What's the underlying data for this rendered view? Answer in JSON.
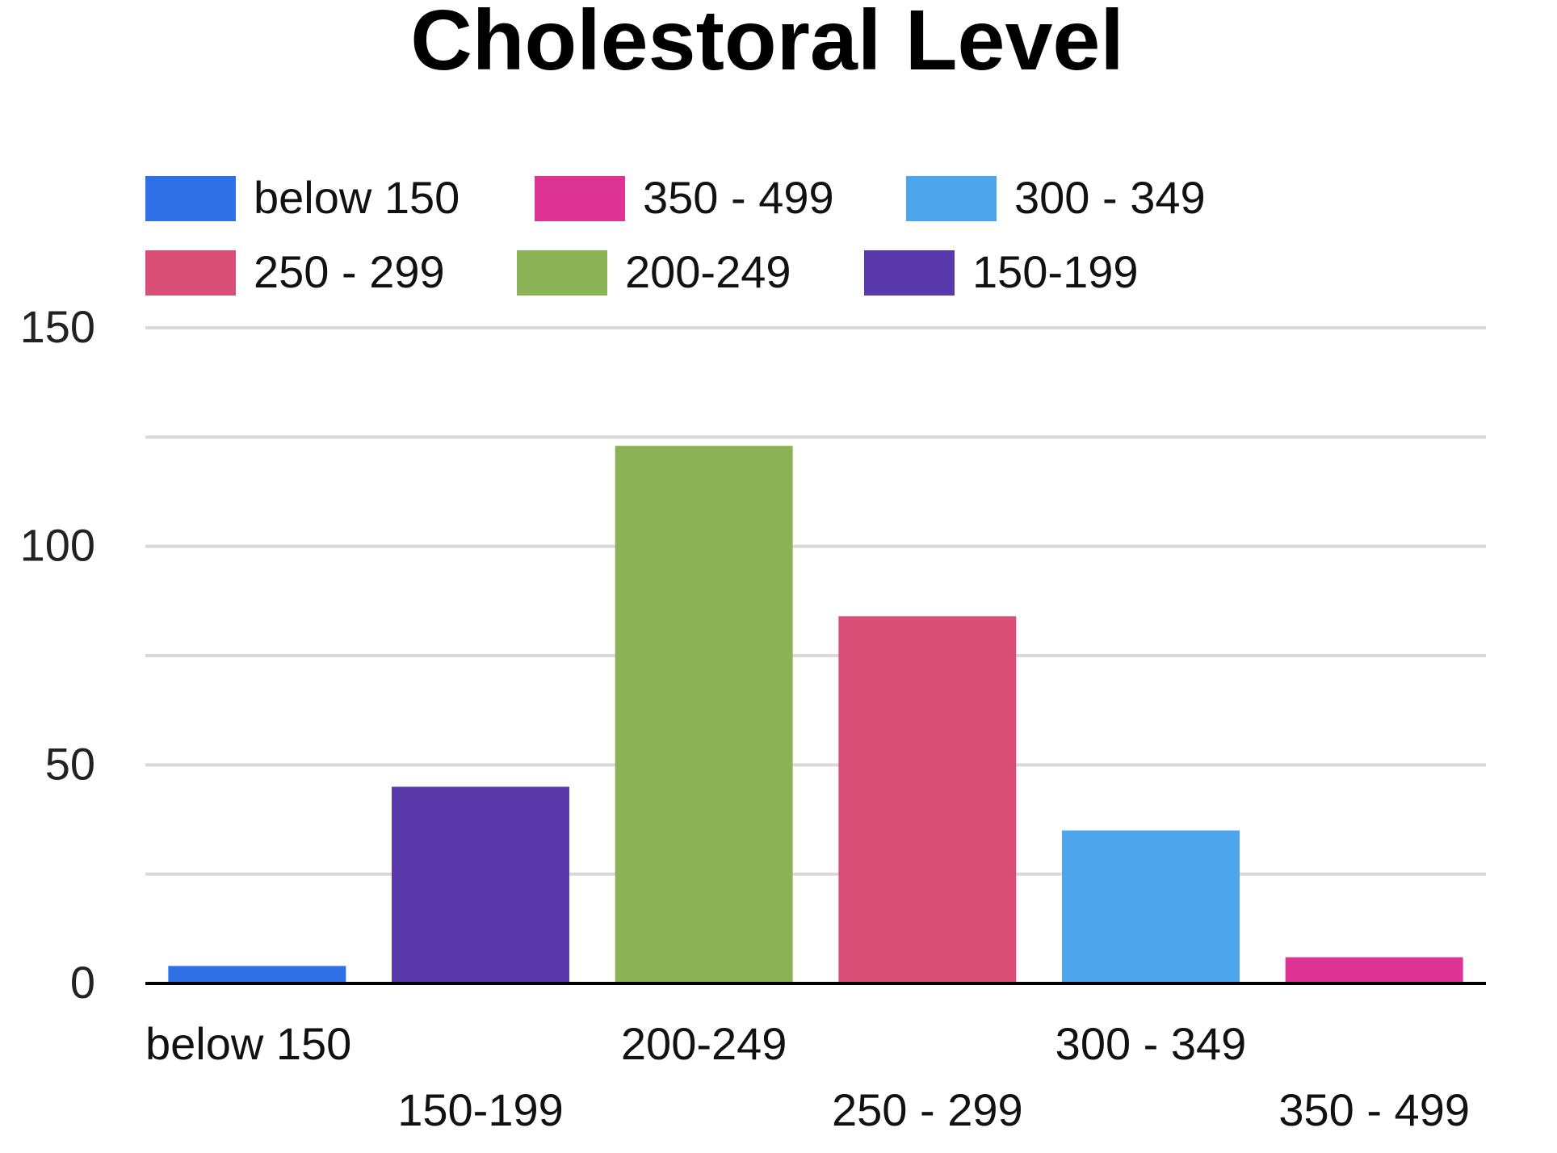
{
  "chart_data": {
    "type": "bar",
    "title": "Cholestoral Level",
    "categories": [
      "below 150",
      "150-199",
      "200-249",
      "250 - 299",
      "300 - 349",
      "350 - 499"
    ],
    "values": [
      4,
      45,
      123,
      84,
      35,
      6
    ],
    "colors": [
      "#3070E6",
      "#5A39AA",
      "#8BB255",
      "#DA4F78",
      "#4DA5EC",
      "#DC3394"
    ],
    "legend": [
      {
        "label": "below 150",
        "color": "#3070E6"
      },
      {
        "label": "350 - 499",
        "color": "#DC3394"
      },
      {
        "label": "300 - 349",
        "color": "#4DA5EC"
      },
      {
        "label": "250 - 299",
        "color": "#DA4F78"
      },
      {
        "label": "200-249",
        "color": "#8BB255"
      },
      {
        "label": "150-199",
        "color": "#5A39AA"
      }
    ],
    "yticks": [
      0,
      50,
      100,
      150
    ],
    "ylim": [
      0,
      150
    ],
    "grid": true,
    "legend_position": "top"
  }
}
